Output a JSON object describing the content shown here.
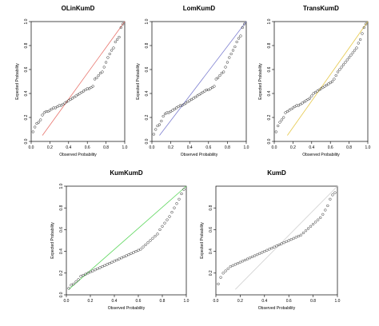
{
  "chart_data": [
    {
      "type": "scatter",
      "title": "OLinKumD",
      "xlabel": "Observed Probability",
      "ylabel": "Expected Probability",
      "xlim": [
        0,
        1
      ],
      "ylim": [
        0,
        1
      ],
      "xticks": [
        "0.0",
        "0.2",
        "0.4",
        "0.6",
        "0.8",
        "1.0"
      ],
      "yticks": [
        "0.0",
        "0.2",
        "0.4",
        "0.6",
        "0.8",
        "1.0"
      ],
      "grid": false,
      "reference_line": {
        "x1": 0.12,
        "y1": 0.05,
        "x2": 1.0,
        "y2": 1.0,
        "color": "#e8736c"
      },
      "points": {
        "x": [
          0.02,
          0.04,
          0.06,
          0.08,
          0.1,
          0.12,
          0.14,
          0.16,
          0.18,
          0.2,
          0.22,
          0.24,
          0.26,
          0.28,
          0.3,
          0.32,
          0.34,
          0.36,
          0.38,
          0.4,
          0.42,
          0.44,
          0.46,
          0.48,
          0.5,
          0.52,
          0.54,
          0.56,
          0.58,
          0.6,
          0.62,
          0.64,
          0.66,
          0.68,
          0.7,
          0.72,
          0.74,
          0.76,
          0.78,
          0.8,
          0.82,
          0.84,
          0.86,
          0.88,
          0.9,
          0.92,
          0.94,
          0.96,
          0.98
        ],
        "y": [
          0.08,
          0.12,
          0.15,
          0.16,
          0.18,
          0.22,
          0.24,
          0.25,
          0.25,
          0.26,
          0.27,
          0.28,
          0.28,
          0.29,
          0.3,
          0.3,
          0.31,
          0.32,
          0.33,
          0.34,
          0.35,
          0.36,
          0.37,
          0.38,
          0.39,
          0.4,
          0.41,
          0.42,
          0.43,
          0.44,
          0.44,
          0.45,
          0.46,
          0.52,
          0.53,
          0.55,
          0.57,
          0.58,
          0.62,
          0.66,
          0.7,
          0.73,
          0.76,
          0.78,
          0.83,
          0.85,
          0.87,
          0.95,
          0.98
        ]
      }
    },
    {
      "type": "scatter",
      "title": "LomKumD",
      "xlabel": "Observed Probability",
      "ylabel": "Expected Probability",
      "xlim": [
        0,
        1
      ],
      "ylim": [
        0,
        1
      ],
      "xticks": [
        "0.0",
        "0.2",
        "0.4",
        "0.6",
        "0.8",
        "1.0"
      ],
      "yticks": [
        "0.0",
        "0.2",
        "0.4",
        "0.6",
        "0.8",
        "1.0"
      ],
      "grid": false,
      "reference_line": {
        "x1": 0.08,
        "y1": 0.05,
        "x2": 1.0,
        "y2": 1.0,
        "color": "#7d7fd0"
      },
      "points": {
        "x": [
          0.02,
          0.04,
          0.06,
          0.08,
          0.1,
          0.12,
          0.14,
          0.16,
          0.18,
          0.2,
          0.22,
          0.24,
          0.26,
          0.28,
          0.3,
          0.32,
          0.34,
          0.36,
          0.38,
          0.4,
          0.42,
          0.44,
          0.46,
          0.48,
          0.5,
          0.52,
          0.54,
          0.56,
          0.58,
          0.6,
          0.62,
          0.64,
          0.66,
          0.68,
          0.7,
          0.72,
          0.74,
          0.76,
          0.78,
          0.8,
          0.82,
          0.84,
          0.86,
          0.88,
          0.9,
          0.92,
          0.94,
          0.96,
          0.98
        ],
        "y": [
          0.06,
          0.1,
          0.13,
          0.14,
          0.17,
          0.21,
          0.23,
          0.24,
          0.24,
          0.25,
          0.26,
          0.27,
          0.28,
          0.29,
          0.3,
          0.3,
          0.31,
          0.32,
          0.33,
          0.34,
          0.35,
          0.36,
          0.37,
          0.38,
          0.39,
          0.4,
          0.41,
          0.42,
          0.43,
          0.43,
          0.44,
          0.45,
          0.46,
          0.52,
          0.53,
          0.55,
          0.57,
          0.58,
          0.62,
          0.66,
          0.7,
          0.73,
          0.76,
          0.79,
          0.83,
          0.86,
          0.88,
          0.95,
          0.98
        ]
      }
    },
    {
      "type": "scatter",
      "title": "TransKumD",
      "xlabel": "Observed Probability",
      "ylabel": "Expected Probability",
      "xlim": [
        0,
        1
      ],
      "ylim": [
        0,
        1
      ],
      "xticks": [
        "0.0",
        "0.2",
        "0.4",
        "0.6",
        "0.8",
        "1.0"
      ],
      "yticks": [
        "0.0",
        "0.2",
        "0.4",
        "0.6",
        "0.8",
        "1.0"
      ],
      "grid": false,
      "reference_line": {
        "x1": 0.14,
        "y1": 0.05,
        "x2": 1.0,
        "y2": 1.0,
        "color": "#e6c84a"
      },
      "points": {
        "x": [
          0.02,
          0.04,
          0.06,
          0.08,
          0.1,
          0.12,
          0.14,
          0.16,
          0.18,
          0.2,
          0.22,
          0.24,
          0.26,
          0.28,
          0.3,
          0.32,
          0.34,
          0.36,
          0.38,
          0.4,
          0.42,
          0.44,
          0.46,
          0.48,
          0.5,
          0.52,
          0.54,
          0.56,
          0.58,
          0.6,
          0.62,
          0.64,
          0.66,
          0.68,
          0.7,
          0.72,
          0.74,
          0.76,
          0.78,
          0.8,
          0.82,
          0.84,
          0.86,
          0.88,
          0.9,
          0.92,
          0.94,
          0.96,
          0.98
        ],
        "y": [
          0.08,
          0.13,
          0.16,
          0.18,
          0.2,
          0.24,
          0.25,
          0.26,
          0.27,
          0.28,
          0.29,
          0.3,
          0.3,
          0.31,
          0.32,
          0.33,
          0.34,
          0.35,
          0.36,
          0.38,
          0.4,
          0.41,
          0.42,
          0.43,
          0.44,
          0.45,
          0.46,
          0.47,
          0.48,
          0.49,
          0.5,
          0.52,
          0.55,
          0.58,
          0.6,
          0.62,
          0.64,
          0.66,
          0.68,
          0.7,
          0.72,
          0.74,
          0.76,
          0.78,
          0.82,
          0.85,
          0.9,
          0.95,
          0.98
        ]
      }
    },
    {
      "type": "scatter",
      "title": "KumKumD",
      "xlabel": "Observed Probability",
      "ylabel": "Expected Probability",
      "xlim": [
        0,
        1
      ],
      "ylim": [
        0,
        1
      ],
      "xticks": [
        "0.0",
        "0.2",
        "0.4",
        "0.6",
        "0.8",
        "1.0"
      ],
      "yticks": [
        "0.0",
        "0.2",
        "0.4",
        "0.6",
        "0.8",
        "1.0"
      ],
      "grid": false,
      "reference_line": {
        "x1": 0.02,
        "y1": 0.05,
        "x2": 1.0,
        "y2": 1.0,
        "color": "#5ed75e"
      },
      "points": {
        "x": [
          0.02,
          0.04,
          0.06,
          0.08,
          0.1,
          0.12,
          0.14,
          0.16,
          0.18,
          0.2,
          0.22,
          0.24,
          0.26,
          0.28,
          0.3,
          0.32,
          0.34,
          0.36,
          0.38,
          0.4,
          0.42,
          0.44,
          0.46,
          0.48,
          0.5,
          0.52,
          0.54,
          0.56,
          0.58,
          0.6,
          0.62,
          0.64,
          0.66,
          0.68,
          0.7,
          0.72,
          0.74,
          0.76,
          0.78,
          0.8,
          0.82,
          0.84,
          0.86,
          0.88,
          0.9,
          0.92,
          0.94,
          0.96,
          0.98
        ],
        "y": [
          0.06,
          0.09,
          0.1,
          0.12,
          0.14,
          0.17,
          0.18,
          0.19,
          0.2,
          0.21,
          0.22,
          0.23,
          0.24,
          0.25,
          0.26,
          0.27,
          0.28,
          0.29,
          0.3,
          0.31,
          0.32,
          0.33,
          0.34,
          0.35,
          0.36,
          0.37,
          0.38,
          0.39,
          0.4,
          0.41,
          0.42,
          0.44,
          0.46,
          0.48,
          0.5,
          0.52,
          0.54,
          0.56,
          0.6,
          0.63,
          0.66,
          0.69,
          0.72,
          0.76,
          0.8,
          0.84,
          0.88,
          0.93,
          0.97
        ]
      }
    },
    {
      "type": "scatter",
      "title": "KumD",
      "xlabel": "Observed Probability",
      "ylabel": "Expected Probability",
      "xlim": [
        0,
        1
      ],
      "ylim": [
        0,
        1
      ],
      "xticks": [
        "0.0",
        "0.2",
        "0.4",
        "0.6",
        "0.8",
        "1.0"
      ],
      "yticks": [
        "0.2",
        "0.4",
        "0.6",
        "0.8"
      ],
      "grid": false,
      "reference_line": {
        "x1": 0.16,
        "y1": 0.05,
        "x2": 1.0,
        "y2": 1.0,
        "color": "#d0d0d0"
      },
      "points": {
        "x": [
          0.02,
          0.04,
          0.06,
          0.08,
          0.1,
          0.12,
          0.14,
          0.16,
          0.18,
          0.2,
          0.22,
          0.24,
          0.26,
          0.28,
          0.3,
          0.32,
          0.34,
          0.36,
          0.38,
          0.4,
          0.42,
          0.44,
          0.46,
          0.48,
          0.5,
          0.52,
          0.54,
          0.56,
          0.58,
          0.6,
          0.62,
          0.64,
          0.66,
          0.68,
          0.7,
          0.72,
          0.74,
          0.76,
          0.78,
          0.8,
          0.82,
          0.84,
          0.86,
          0.88,
          0.9,
          0.92,
          0.94,
          0.96,
          0.98
        ],
        "y": [
          0.1,
          0.16,
          0.2,
          0.22,
          0.24,
          0.26,
          0.27,
          0.28,
          0.29,
          0.3,
          0.31,
          0.32,
          0.33,
          0.34,
          0.35,
          0.36,
          0.37,
          0.38,
          0.39,
          0.4,
          0.41,
          0.42,
          0.43,
          0.44,
          0.45,
          0.46,
          0.47,
          0.48,
          0.49,
          0.5,
          0.51,
          0.52,
          0.53,
          0.54,
          0.55,
          0.57,
          0.59,
          0.61,
          0.63,
          0.65,
          0.67,
          0.69,
          0.71,
          0.74,
          0.78,
          0.82,
          0.88,
          0.92,
          0.94
        ]
      }
    }
  ]
}
